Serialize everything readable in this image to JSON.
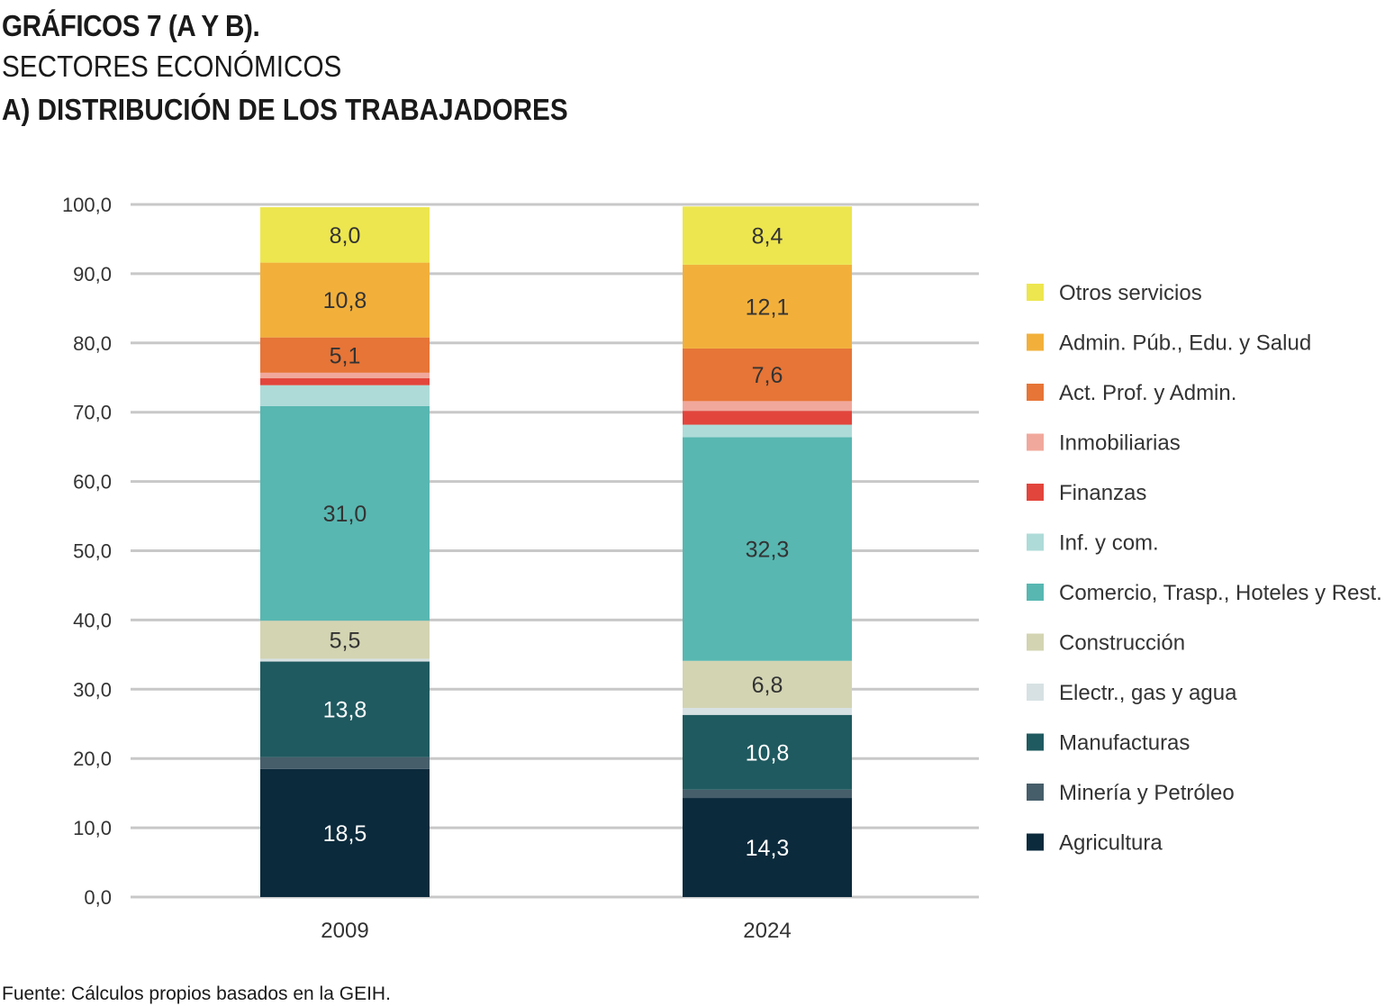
{
  "title": "GRÁFICOS 7 (A Y B).",
  "subtitle": "SECTORES ECONÓMICOS",
  "subtitle2": "A) DISTRIBUCIÓN DE LOS TRABAJADORES",
  "source": "Fuente: Cálculos propios basados en la GEIH.",
  "chart_data": {
    "type": "bar",
    "stacked": true,
    "categories": [
      "2009",
      "2024"
    ],
    "ylim": [
      0,
      100
    ],
    "yticks": [
      "0,0",
      "10,0",
      "20,0",
      "30,0",
      "40,0",
      "50,0",
      "60,0",
      "70,0",
      "80,0",
      "90,0",
      "100,0"
    ],
    "grid": true,
    "legend_position": "right",
    "series": [
      {
        "name": "Agricultura",
        "color": "#0b2a3c",
        "values": [
          18.5,
          14.3
        ],
        "labels": [
          "18,5",
          "14,3"
        ],
        "label_color": "#ffffff"
      },
      {
        "name": "Minería y Petróleo",
        "color": "#465e6a",
        "values": [
          1.7,
          1.2
        ],
        "labels": [
          "",
          ""
        ]
      },
      {
        "name": "Manufacturas",
        "color": "#1f5a60",
        "values": [
          13.8,
          10.8
        ],
        "labels": [
          "13,8",
          "10,8"
        ],
        "label_color": "#ffffff"
      },
      {
        "name": "Electr., gas y agua",
        "color": "#d7e1e4",
        "values": [
          0.4,
          1.0
        ],
        "labels": [
          "",
          ""
        ]
      },
      {
        "name": "Construcción",
        "color": "#d3d4b2",
        "values": [
          5.5,
          6.8
        ],
        "labels": [
          "5,5",
          "6,8"
        ],
        "label_color": "#333333"
      },
      {
        "name": "Comercio, Trasp., Hoteles y Rest.",
        "color": "#58b7b1",
        "values": [
          31.0,
          32.3
        ],
        "labels": [
          "31,0",
          "32,3"
        ],
        "label_color": "#333333"
      },
      {
        "name": "Inf. y com.",
        "color": "#aedbd8",
        "values": [
          3.0,
          1.8
        ],
        "labels": [
          "",
          ""
        ]
      },
      {
        "name": "Finanzas",
        "color": "#e2453c",
        "values": [
          1.0,
          2.0
        ],
        "labels": [
          "",
          ""
        ]
      },
      {
        "name": "Inmobiliarias",
        "color": "#f1a89c",
        "values": [
          0.8,
          1.4
        ],
        "labels": [
          "",
          ""
        ]
      },
      {
        "name": "Act. Prof. y Admin.",
        "color": "#e67537",
        "values": [
          5.1,
          7.6
        ],
        "labels": [
          "5,1",
          "7,6"
        ],
        "label_color": "#333333"
      },
      {
        "name": "Admin. Púb., Edu. y Salud",
        "color": "#f2b03b",
        "values": [
          10.8,
          12.1
        ],
        "labels": [
          "10,8",
          "12,1"
        ],
        "label_color": "#333333"
      },
      {
        "name": "Otros servicios",
        "color": "#ede64f",
        "values": [
          8.0,
          8.4
        ],
        "labels": [
          "8,0",
          "8,4"
        ],
        "label_color": "#333333"
      }
    ]
  }
}
